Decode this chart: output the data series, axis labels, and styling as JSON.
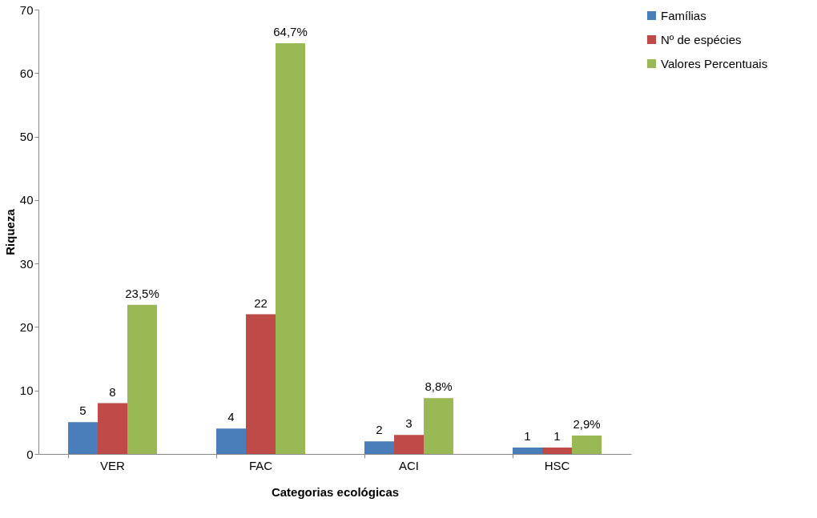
{
  "chart_data": {
    "type": "bar",
    "xlabel": "Categorias ecológicas",
    "ylabel": "Riqueza",
    "categories": [
      "VER",
      "FAC",
      "ACI",
      "HSC"
    ],
    "series": [
      {
        "name": "Famílias",
        "color": "#4a7ebb",
        "values": [
          5,
          4,
          2,
          1
        ],
        "value_labels": [
          "5",
          "4",
          "2",
          "1"
        ]
      },
      {
        "name": "Nº de espécies",
        "color": "#be4b48",
        "values": [
          8,
          22,
          3,
          1
        ],
        "value_labels": [
          "8",
          "22",
          "3",
          "1"
        ]
      },
      {
        "name": "Valores Percentuais",
        "color": "#98b954",
        "values": [
          23.5,
          64.7,
          8.8,
          2.9
        ],
        "value_labels": [
          "23,5%",
          "64,7%",
          "8,8%",
          "2,9%"
        ]
      }
    ],
    "ylim": [
      0,
      70
    ],
    "yticks": [
      0,
      10,
      20,
      30,
      40,
      50,
      60,
      70
    ],
    "grid": false,
    "legend": "right"
  }
}
